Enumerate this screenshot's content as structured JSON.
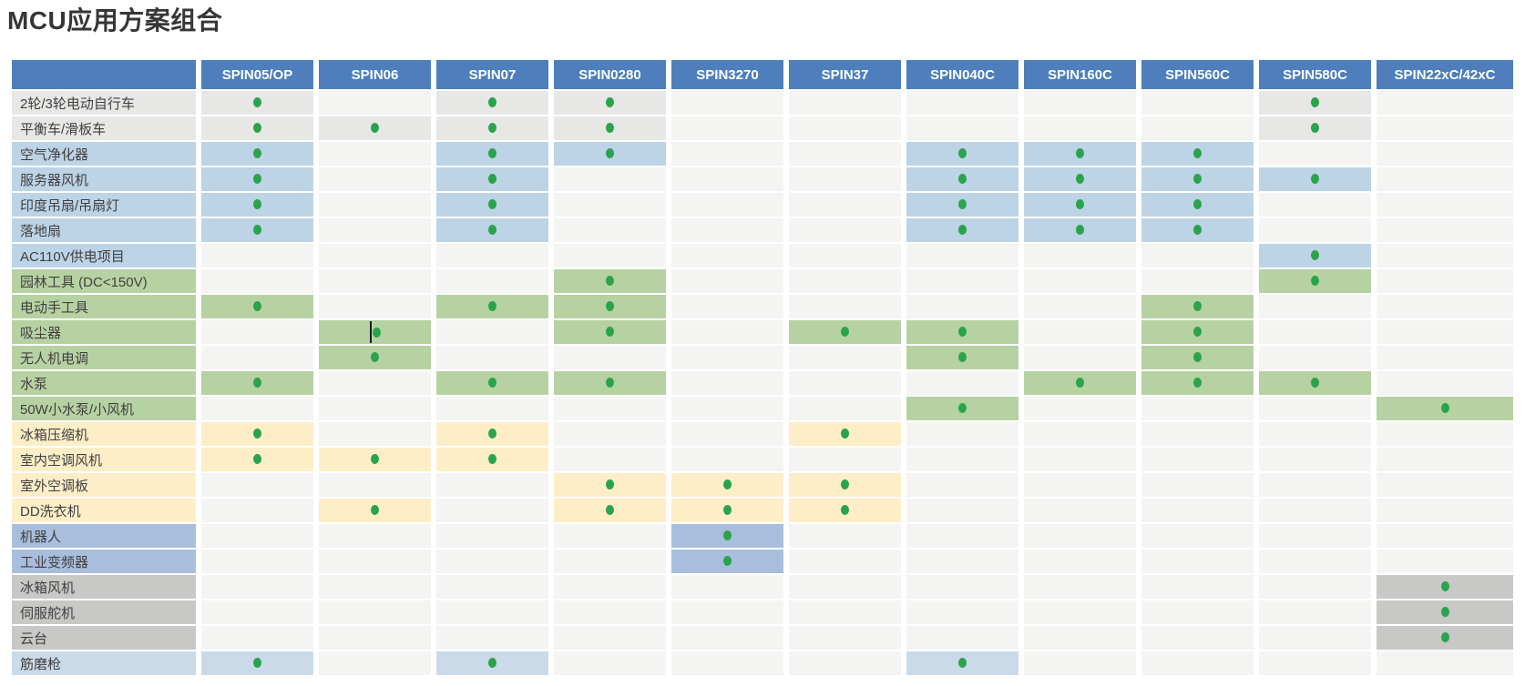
{
  "title": "MCU应用方案组合",
  "colors": {
    "header_bg": "#4e7fbc",
    "header_text": "#ffffff",
    "dot_green": "#2aa44c",
    "empty_cell": "#f4f4f2",
    "label_text": "#3f3f3f",
    "title_text": "#363636",
    "row_palette": {
      "gray_light": "#e7e7e5",
      "blue": "#bdd3e6",
      "green": "#b7d2a2",
      "yellow": "#fdeec8",
      "periwinkle": "#a9bedd",
      "gray_mid": "#c8c8c6",
      "blue_pale": "#cbdae9"
    }
  },
  "columns": [
    "SPIN05/OP",
    "SPIN06",
    "SPIN07",
    "SPIN0280",
    "SPIN3270",
    "SPIN37",
    "SPIN040C",
    "SPIN160C",
    "SPIN560C",
    "SPIN580C",
    "SPIN22xC/42xC"
  ],
  "rows": [
    {
      "label": "2轮/3轮电动自行车",
      "color": "gray_light",
      "dots": [
        1,
        3,
        4,
        10
      ]
    },
    {
      "label": "平衡车/滑板车",
      "color": "gray_light",
      "dots": [
        1,
        2,
        3,
        4,
        10
      ]
    },
    {
      "label": "空气净化器",
      "color": "blue",
      "dots": [
        1,
        3,
        4,
        7,
        8,
        9
      ]
    },
    {
      "label": "服务器风机",
      "color": "blue",
      "dots": [
        1,
        3,
        7,
        8,
        9,
        10
      ]
    },
    {
      "label": "印度吊扇/吊扇灯",
      "color": "blue",
      "dots": [
        1,
        3,
        7,
        8,
        9
      ]
    },
    {
      "label": "落地扇",
      "color": "blue",
      "dots": [
        1,
        3,
        7,
        8,
        9
      ]
    },
    {
      "label": "AC110V供电项目",
      "color": "blue",
      "dots": [
        10
      ]
    },
    {
      "label": "园林工具 (DC<150V)",
      "color": "green",
      "dots": [
        4,
        10
      ]
    },
    {
      "label": "电动手工具",
      "color": "green",
      "dots": [
        1,
        3,
        4,
        9
      ]
    },
    {
      "label": "吸尘器",
      "color": "green",
      "dots": [
        2,
        4,
        6,
        7,
        9
      ]
    },
    {
      "label": "无人机电调",
      "color": "green",
      "dots": [
        2,
        7,
        9
      ]
    },
    {
      "label": "水泵",
      "color": "green",
      "dots": [
        1,
        3,
        4,
        8,
        9,
        10
      ]
    },
    {
      "label": "50W小水泵/小风机",
      "color": "green",
      "dots": [
        7,
        11
      ]
    },
    {
      "label": "冰箱压缩机",
      "color": "yellow",
      "dots": [
        1,
        3,
        6
      ]
    },
    {
      "label": "室内空调风机",
      "color": "yellow",
      "dots": [
        1,
        2,
        3
      ]
    },
    {
      "label": "室外空调板",
      "color": "yellow",
      "dots": [
        4,
        5,
        6
      ]
    },
    {
      "label": "DD洗衣机",
      "color": "yellow",
      "dots": [
        2,
        4,
        5,
        6
      ]
    },
    {
      "label": "机器人",
      "color": "periwinkle",
      "dots": [
        5
      ]
    },
    {
      "label": "工业变频器",
      "color": "periwinkle",
      "dots": [
        5
      ]
    },
    {
      "label": "冰箱风机",
      "color": "gray_mid",
      "dots": [
        11
      ]
    },
    {
      "label": "伺服舵机",
      "color": "gray_mid",
      "dots": [
        11
      ]
    },
    {
      "label": "云台",
      "color": "gray_mid",
      "dots": [
        11
      ]
    },
    {
      "label": "筋磨枪",
      "color": "blue_pale",
      "dots": [
        1,
        3,
        7
      ]
    }
  ],
  "cursor_artifact": {
    "row_index": 10,
    "col": 2
  }
}
